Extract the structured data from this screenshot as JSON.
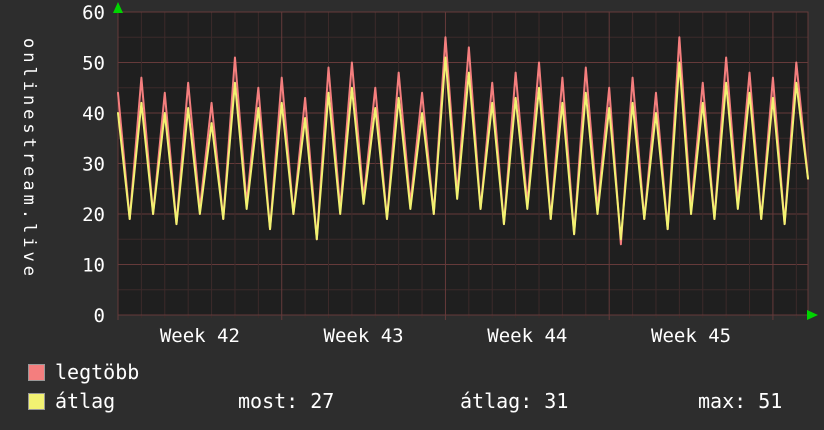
{
  "page": {
    "background": "#2d2d2d"
  },
  "colors": {
    "plot_bg": "#1f1f1f",
    "grid_major": "#653a3a",
    "grid_minor": "#3c2a2a",
    "arrow": "#00d400",
    "text": "#ffffff"
  },
  "legend": {
    "items": [
      {
        "name": "legtöbb",
        "color": "#f47e7e"
      },
      {
        "name": "átlag",
        "color": "#f2f272"
      }
    ],
    "stats": [
      {
        "label": "most:",
        "value": "27"
      },
      {
        "label": "átlag:",
        "value": "31"
      },
      {
        "label": "max:",
        "value": "51"
      }
    ]
  },
  "chart_data": {
    "type": "line",
    "title": "",
    "ylabel": "onlinestream.live",
    "xlabel": "",
    "ylim": [
      0,
      60
    ],
    "yticks": [
      0,
      10,
      20,
      30,
      40,
      50,
      60
    ],
    "xticklabels": [
      "Week 42",
      "Week 43",
      "Week 44",
      "Week 45"
    ],
    "x_unit": "half-day samples across ~30 days (weeks 42-45)",
    "grid": true,
    "legend_position": "bottom-left",
    "series": [
      {
        "name": "legtöbb",
        "color": "#f47e7e",
        "values": [
          44,
          19,
          47,
          20,
          44,
          18,
          46,
          21,
          42,
          19,
          51,
          22,
          45,
          17,
          47,
          20,
          43,
          15,
          49,
          21,
          50,
          23,
          45,
          19,
          48,
          22,
          44,
          20,
          55,
          24,
          53,
          21,
          46,
          18,
          48,
          22,
          50,
          19,
          47,
          16,
          49,
          21,
          45,
          14,
          47,
          19,
          44,
          17,
          55,
          21,
          46,
          19,
          51,
          22,
          48,
          19,
          47,
          18,
          50,
          27
        ]
      },
      {
        "name": "átlag",
        "color": "#f2f272",
        "values": [
          40,
          19,
          42,
          20,
          40,
          18,
          41,
          20,
          38,
          19,
          46,
          21,
          41,
          17,
          42,
          20,
          39,
          15,
          44,
          20,
          45,
          22,
          41,
          19,
          43,
          21,
          40,
          20,
          51,
          23,
          48,
          21,
          42,
          18,
          43,
          21,
          45,
          19,
          42,
          16,
          44,
          20,
          41,
          15,
          42,
          19,
          40,
          17,
          50,
          20,
          42,
          19,
          46,
          21,
          44,
          19,
          43,
          18,
          46,
          27
        ]
      }
    ]
  }
}
